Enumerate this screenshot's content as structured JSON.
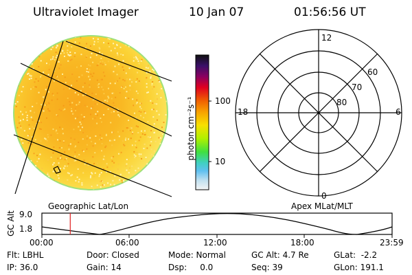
{
  "header": {
    "instrument": "Ultraviolet Imager",
    "date": "10 Jan 07",
    "time": "01:56:56 UT"
  },
  "colorbar": {
    "unit_label": "photon cm⁻²s⁻¹",
    "ticks": [
      "100",
      "10"
    ]
  },
  "polar_plot": {
    "mlt_labels": [
      "12",
      "18",
      "6",
      "0"
    ],
    "mlat_labels": [
      "60",
      "70",
      "80"
    ]
  },
  "map_labels": {
    "left": "Geographic Lat/Lon",
    "right": "Apex MLat/MLT"
  },
  "altitude_plot": {
    "ylabel": "GC Alt",
    "yticks": [
      "9.0",
      "1.8"
    ],
    "xticks": [
      "00:00",
      "06:00",
      "12:00",
      "18:00",
      "23:59"
    ],
    "current_time_fraction": 0.081
  },
  "status": {
    "filter": "Flt: LBHL",
    "door": "Door: Closed",
    "mode": "Mode: Normal",
    "gc_alt": "GC Alt: 4.7 Re",
    "glat": "GLat:  -2.2",
    "ip": "IP: 36.0",
    "gain": "Gain: 14",
    "dsp": "Dsp:     0.0",
    "seq": "Seq: 39",
    "glon": "GLon: 191.1"
  }
}
